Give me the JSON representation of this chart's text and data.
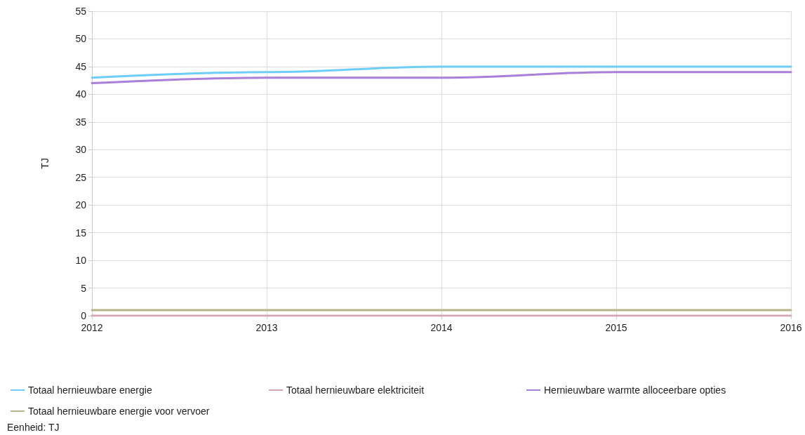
{
  "chart_data": {
    "type": "line",
    "ylabel": "TJ",
    "x": [
      2012,
      2013,
      2014,
      2015,
      2016
    ],
    "xlim": [
      2012,
      2016
    ],
    "xticks": [
      2012,
      2013,
      2014,
      2015,
      2016
    ],
    "ylim": [
      0,
      55
    ],
    "yticks": [
      0,
      5,
      10,
      15,
      20,
      25,
      30,
      35,
      40,
      45,
      50,
      55
    ],
    "grid": true,
    "legend": "bottom",
    "marker": "none",
    "line_style": "solid",
    "series": [
      {
        "name": "Totaal hernieuwbare energie",
        "color": "#6fcdfa",
        "values": [
          43,
          44,
          45,
          45,
          45
        ]
      },
      {
        "name": "Totaal hernieuwbare elektriciteit",
        "color": "#d4a5b5",
        "values": [
          0,
          0,
          0,
          0,
          0
        ]
      },
      {
        "name": "Hernieuwbare warmte alloceerbare opties",
        "color": "#a97fd9",
        "values": [
          42,
          43,
          43,
          44,
          44
        ]
      },
      {
        "name": "Totaal hernieuwbare energie voor vervoer",
        "color": "#b8b38a",
        "values": [
          1,
          1,
          1,
          1,
          1
        ]
      }
    ],
    "annotations": [
      "Eenheid: TJ"
    ]
  }
}
